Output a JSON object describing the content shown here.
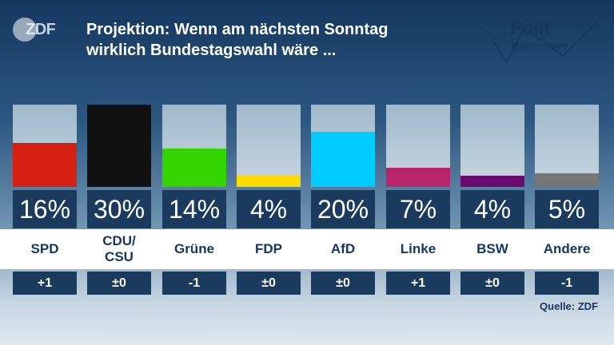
{
  "logos": {
    "broadcaster": "ZDF",
    "show_line1": "Polit",
    "show_line2": "Barometer"
  },
  "title_line1": "Projektion: Wenn am nächsten Sonntag",
  "title_line2": "wirklich Bundestagswahl wäre ...",
  "source": "Quelle: ZDF",
  "chart_data": {
    "type": "bar",
    "categories": [
      "SPD",
      "CDU/\nCSU",
      "Grüne",
      "FDP",
      "AfD",
      "Linke",
      "BSW",
      "Andere"
    ],
    "values": [
      16,
      30,
      14,
      4,
      20,
      7,
      4,
      5
    ],
    "value_labels": [
      "16%",
      "30%",
      "14%",
      "4%",
      "20%",
      "7%",
      "4%",
      "5%"
    ],
    "change_labels": [
      "+1",
      "±0",
      "-1",
      "±0",
      "±0",
      "+1",
      "±0",
      "-1"
    ],
    "colors": [
      "#d42010",
      "#111111",
      "#33d400",
      "#ffdc00",
      "#00ccff",
      "#b8256a",
      "#6a0a6e",
      "#767676"
    ],
    "ylim": [
      0,
      30
    ],
    "unit": "%",
    "grid": false,
    "title": "Projektion: Wenn am nächsten Sonntag wirklich Bundestagswahl wäre ...",
    "xlabel": "",
    "ylabel": ""
  }
}
